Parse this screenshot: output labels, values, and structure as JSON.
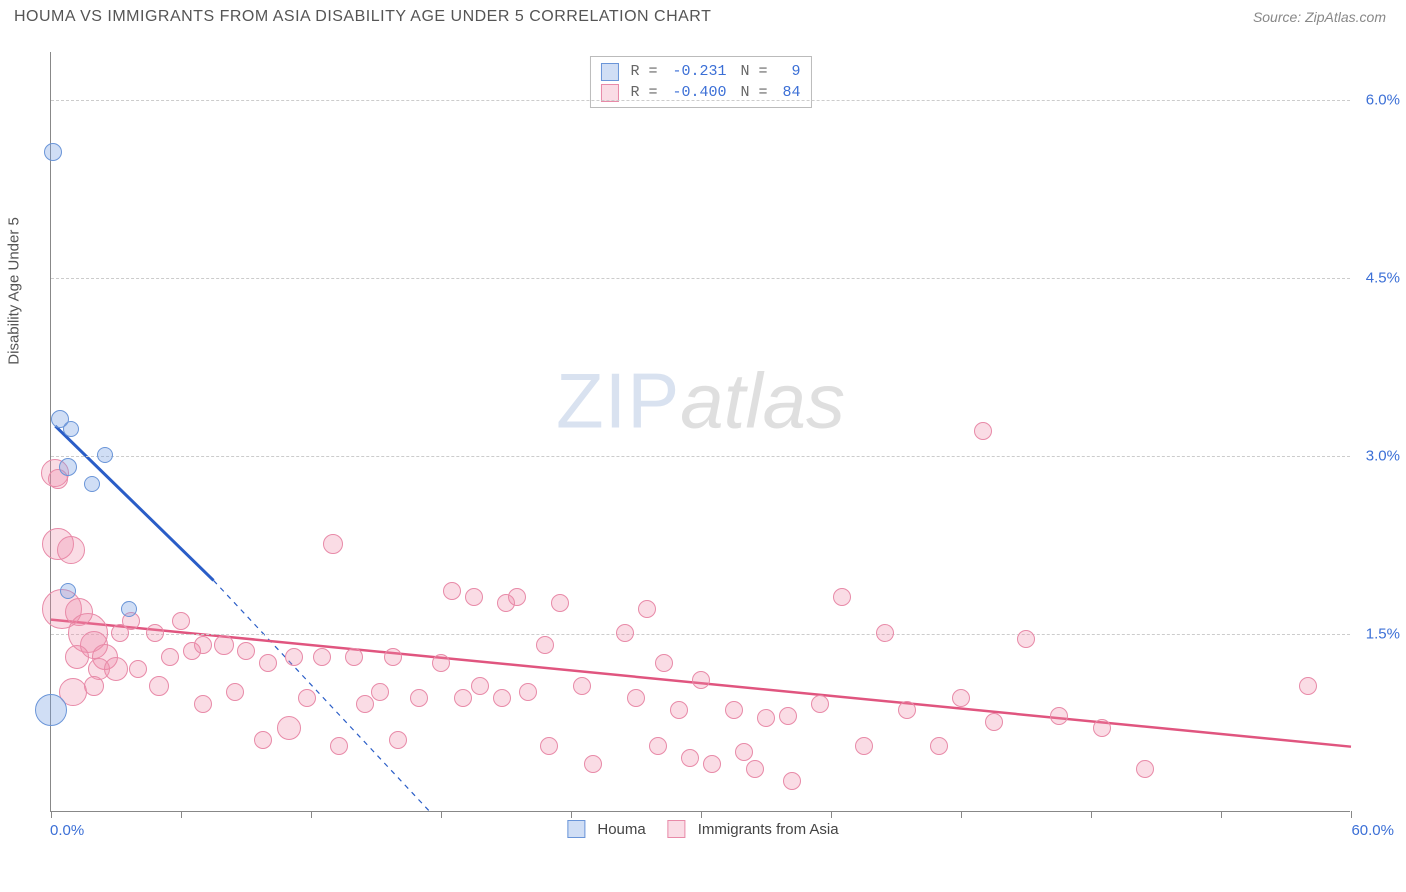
{
  "header": {
    "title": "HOUMA VS IMMIGRANTS FROM ASIA DISABILITY AGE UNDER 5 CORRELATION CHART",
    "source": "Source: ZipAtlas.com"
  },
  "watermark": {
    "left": "ZIP",
    "right": "atlas"
  },
  "y_axis_title": "Disability Age Under 5",
  "x_axis": {
    "min": 0,
    "max": 60,
    "label_min": "0.0%",
    "label_max": "60.0%",
    "ticks": [
      0,
      6,
      12,
      18,
      24,
      30,
      36,
      42,
      48,
      54,
      60
    ]
  },
  "y_axis": {
    "min": 0,
    "max": 6.4,
    "grid_values": [
      1.5,
      3.0,
      4.5,
      6.0
    ],
    "grid_labels": [
      "1.5%",
      "3.0%",
      "4.5%",
      "6.0%"
    ]
  },
  "colors": {
    "blue_fill": "rgba(120,160,225,0.35)",
    "blue_stroke": "#6a95d8",
    "pink_fill": "rgba(240,140,170,0.30)",
    "pink_stroke": "#e88aa8",
    "blue_line": "#2a5dc7",
    "pink_line": "#e0557f",
    "grid": "#cccccc",
    "axis": "#888888",
    "tick_label": "#3b6fd6"
  },
  "legend_top": {
    "rows": [
      {
        "swatch_fill": "rgba(120,160,225,0.35)",
        "swatch_stroke": "#6a95d8",
        "r_label": "R =",
        "r_val": " -0.231",
        "n_label": "N =",
        "n_val": "  9"
      },
      {
        "swatch_fill": "rgba(240,140,170,0.30)",
        "swatch_stroke": "#e88aa8",
        "r_label": "R =",
        "r_val": " -0.400",
        "n_label": "N =",
        "n_val": " 84"
      }
    ]
  },
  "legend_bottom": {
    "items": [
      {
        "swatch_fill": "rgba(120,160,225,0.35)",
        "swatch_stroke": "#6a95d8",
        "label": "Houma"
      },
      {
        "swatch_fill": "rgba(240,140,170,0.30)",
        "swatch_stroke": "#e88aa8",
        "label": "Immigrants from Asia"
      }
    ]
  },
  "series": {
    "houma": {
      "fill": "rgba(120,160,225,0.35)",
      "stroke": "#6a95d8",
      "trend": {
        "x1": 0.2,
        "y1": 3.25,
        "x2": 7.5,
        "y2": 1.95,
        "dash_to_x": 17.5,
        "dash_to_y": 0
      },
      "points": [
        {
          "x": 0.1,
          "y": 5.55,
          "r": 9
        },
        {
          "x": 0.4,
          "y": 3.3,
          "r": 9
        },
        {
          "x": 0.9,
          "y": 3.22,
          "r": 8
        },
        {
          "x": 2.5,
          "y": 3.0,
          "r": 8
        },
        {
          "x": 0.8,
          "y": 2.9,
          "r": 9
        },
        {
          "x": 1.9,
          "y": 2.75,
          "r": 8
        },
        {
          "x": 0.8,
          "y": 1.85,
          "r": 8
        },
        {
          "x": 3.6,
          "y": 1.7,
          "r": 8
        },
        {
          "x": 0.0,
          "y": 0.85,
          "r": 16
        }
      ]
    },
    "asia": {
      "fill": "rgba(240,140,170,0.30)",
      "stroke": "#e88aa8",
      "trend": {
        "x1": 0,
        "y1": 1.62,
        "x2": 60,
        "y2": 0.55
      },
      "points": [
        {
          "x": 0.2,
          "y": 2.85,
          "r": 14
        },
        {
          "x": 0.3,
          "y": 2.8,
          "r": 10
        },
        {
          "x": 0.3,
          "y": 2.25,
          "r": 16
        },
        {
          "x": 0.9,
          "y": 2.2,
          "r": 14
        },
        {
          "x": 0.5,
          "y": 1.7,
          "r": 20
        },
        {
          "x": 1.3,
          "y": 1.68,
          "r": 14
        },
        {
          "x": 1.7,
          "y": 1.5,
          "r": 20
        },
        {
          "x": 2.0,
          "y": 1.4,
          "r": 14
        },
        {
          "x": 1.2,
          "y": 1.3,
          "r": 12
        },
        {
          "x": 2.5,
          "y": 1.3,
          "r": 13
        },
        {
          "x": 2.2,
          "y": 1.2,
          "r": 11
        },
        {
          "x": 3.0,
          "y": 1.2,
          "r": 12
        },
        {
          "x": 1.0,
          "y": 1.0,
          "r": 14
        },
        {
          "x": 2.0,
          "y": 1.05,
          "r": 10
        },
        {
          "x": 3.2,
          "y": 1.5,
          "r": 9
        },
        {
          "x": 3.7,
          "y": 1.6,
          "r": 9
        },
        {
          "x": 4.0,
          "y": 1.2,
          "r": 9
        },
        {
          "x": 4.8,
          "y": 1.5,
          "r": 9
        },
        {
          "x": 5.0,
          "y": 1.05,
          "r": 10
        },
        {
          "x": 5.5,
          "y": 1.3,
          "r": 9
        },
        {
          "x": 6.0,
          "y": 1.6,
          "r": 9
        },
        {
          "x": 6.5,
          "y": 1.35,
          "r": 9
        },
        {
          "x": 7.0,
          "y": 1.4,
          "r": 9
        },
        {
          "x": 7.0,
          "y": 0.9,
          "r": 9
        },
        {
          "x": 8.0,
          "y": 1.4,
          "r": 10
        },
        {
          "x": 8.5,
          "y": 1.0,
          "r": 9
        },
        {
          "x": 9.0,
          "y": 1.35,
          "r": 9
        },
        {
          "x": 9.8,
          "y": 0.6,
          "r": 9
        },
        {
          "x": 10.0,
          "y": 1.25,
          "r": 9
        },
        {
          "x": 11.0,
          "y": 0.7,
          "r": 12
        },
        {
          "x": 11.2,
          "y": 1.3,
          "r": 9
        },
        {
          "x": 11.8,
          "y": 0.95,
          "r": 9
        },
        {
          "x": 12.5,
          "y": 1.3,
          "r": 9
        },
        {
          "x": 13.0,
          "y": 2.25,
          "r": 10
        },
        {
          "x": 13.3,
          "y": 0.55,
          "r": 9
        },
        {
          "x": 14.0,
          "y": 1.3,
          "r": 9
        },
        {
          "x": 14.5,
          "y": 0.9,
          "r": 9
        },
        {
          "x": 15.2,
          "y": 1.0,
          "r": 9
        },
        {
          "x": 15.8,
          "y": 1.3,
          "r": 9
        },
        {
          "x": 16.0,
          "y": 0.6,
          "r": 9
        },
        {
          "x": 17.0,
          "y": 0.95,
          "r": 9
        },
        {
          "x": 18.0,
          "y": 1.25,
          "r": 9
        },
        {
          "x": 18.5,
          "y": 1.85,
          "r": 9
        },
        {
          "x": 19.0,
          "y": 0.95,
          "r": 9
        },
        {
          "x": 19.5,
          "y": 1.8,
          "r": 9
        },
        {
          "x": 19.8,
          "y": 1.05,
          "r": 9
        },
        {
          "x": 20.8,
          "y": 0.95,
          "r": 9
        },
        {
          "x": 21.0,
          "y": 1.75,
          "r": 9
        },
        {
          "x": 21.5,
          "y": 1.8,
          "r": 9
        },
        {
          "x": 22.0,
          "y": 1.0,
          "r": 9
        },
        {
          "x": 22.8,
          "y": 1.4,
          "r": 9
        },
        {
          "x": 23.0,
          "y": 0.55,
          "r": 9
        },
        {
          "x": 23.5,
          "y": 1.75,
          "r": 9
        },
        {
          "x": 24.5,
          "y": 1.05,
          "r": 9
        },
        {
          "x": 25.0,
          "y": 0.4,
          "r": 9
        },
        {
          "x": 26.5,
          "y": 1.5,
          "r": 9
        },
        {
          "x": 27.0,
          "y": 0.95,
          "r": 9
        },
        {
          "x": 27.5,
          "y": 1.7,
          "r": 9
        },
        {
          "x": 28.0,
          "y": 0.55,
          "r": 9
        },
        {
          "x": 28.3,
          "y": 1.25,
          "r": 9
        },
        {
          "x": 29.0,
          "y": 0.85,
          "r": 9
        },
        {
          "x": 29.5,
          "y": 0.45,
          "r": 9
        },
        {
          "x": 30.0,
          "y": 1.1,
          "r": 9
        },
        {
          "x": 30.5,
          "y": 0.4,
          "r": 9
        },
        {
          "x": 31.5,
          "y": 0.85,
          "r": 9
        },
        {
          "x": 32.0,
          "y": 0.5,
          "r": 9
        },
        {
          "x": 32.5,
          "y": 0.35,
          "r": 9
        },
        {
          "x": 33.0,
          "y": 0.78,
          "r": 9
        },
        {
          "x": 34.0,
          "y": 0.8,
          "r": 9
        },
        {
          "x": 34.2,
          "y": 0.25,
          "r": 9
        },
        {
          "x": 35.5,
          "y": 0.9,
          "r": 9
        },
        {
          "x": 36.5,
          "y": 1.8,
          "r": 9
        },
        {
          "x": 37.5,
          "y": 0.55,
          "r": 9
        },
        {
          "x": 38.5,
          "y": 1.5,
          "r": 9
        },
        {
          "x": 39.5,
          "y": 0.85,
          "r": 9
        },
        {
          "x": 41.0,
          "y": 0.55,
          "r": 9
        },
        {
          "x": 42.0,
          "y": 0.95,
          "r": 9
        },
        {
          "x": 43.0,
          "y": 3.2,
          "r": 9
        },
        {
          "x": 43.5,
          "y": 0.75,
          "r": 9
        },
        {
          "x": 45.0,
          "y": 1.45,
          "r": 9
        },
        {
          "x": 46.5,
          "y": 0.8,
          "r": 9
        },
        {
          "x": 48.5,
          "y": 0.7,
          "r": 9
        },
        {
          "x": 50.5,
          "y": 0.35,
          "r": 9
        },
        {
          "x": 58.0,
          "y": 1.05,
          "r": 9
        }
      ]
    }
  }
}
